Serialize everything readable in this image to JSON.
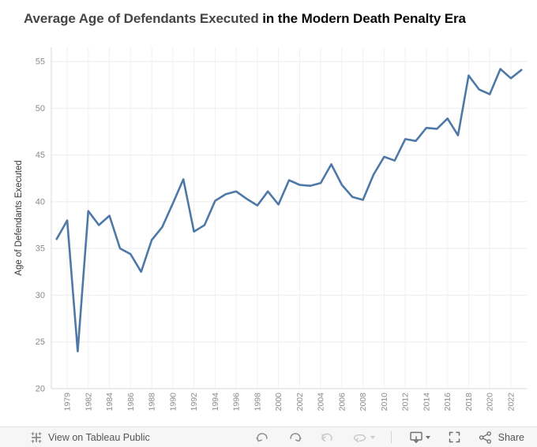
{
  "title": {
    "prefix": "Average Age of Defendants Executed",
    "suffix": "in the Modern Death Penalty Era"
  },
  "chart_data": {
    "type": "line",
    "title": "Average Age of Defendants Executed in the Modern Death Penalty Era",
    "xlabel": "",
    "ylabel": "Age of Defendants Executed",
    "years": [
      1977,
      1979,
      1981,
      1982,
      1983,
      1984,
      1985,
      1986,
      1987,
      1988,
      1989,
      1990,
      1991,
      1992,
      1993,
      1994,
      1995,
      1996,
      1997,
      1998,
      1999,
      2000,
      2001,
      2002,
      2003,
      2004,
      2005,
      2006,
      2007,
      2008,
      2009,
      2010,
      2011,
      2012,
      2013,
      2014,
      2015,
      2016,
      2017,
      2018,
      2019,
      2020,
      2021,
      2022,
      2023
    ],
    "values": [
      36.0,
      38.0,
      24.0,
      39.0,
      37.5,
      38.5,
      35.0,
      34.4,
      32.5,
      35.9,
      37.3,
      39.8,
      42.4,
      36.8,
      37.5,
      40.1,
      40.8,
      41.1,
      40.3,
      39.6,
      41.1,
      39.7,
      42.3,
      41.8,
      41.7,
      42.0,
      44.0,
      41.8,
      40.5,
      40.2,
      42.9,
      44.8,
      44.4,
      46.7,
      46.5,
      47.9,
      47.8,
      48.9,
      47.1,
      53.5,
      52.0,
      51.5,
      54.2,
      53.2,
      54.1
    ],
    "x_tick_labels": [
      "1979",
      "1982",
      "1984",
      "1986",
      "1988",
      "1990",
      "1992",
      "1994",
      "1996",
      "1998",
      "2000",
      "2002",
      "2004",
      "2006",
      "2008",
      "2010",
      "2012",
      "2014",
      "2016",
      "2018",
      "2020",
      "2022"
    ],
    "y_ticks": [
      20,
      25,
      30,
      35,
      40,
      45,
      50,
      55
    ],
    "ylim": [
      20,
      55
    ],
    "line_color": "#4e79a7",
    "grid": true,
    "legend_position": "none"
  },
  "toolbar": {
    "view_label": "View on Tableau Public",
    "share_label": "Share",
    "icons": [
      "tableau-logo-icon",
      "undo-icon",
      "redo-icon",
      "reset-icon",
      "refresh-icon",
      "download-icon",
      "fullscreen-icon",
      "share-icon"
    ],
    "colors": {
      "icon_enabled": "#8f8f8f",
      "icon_disabled": "#c9c9c9",
      "icon_dark": "#6e6e6e",
      "background": "#f6f6f6"
    }
  },
  "colors": {
    "line": "#4e79a7",
    "axis": "#d8d8d8",
    "gridline": "#ebebeb",
    "tick_label": "#8a8a8a",
    "title_prefix": "#454545",
    "title_suffix": "#0a0a0a"
  }
}
